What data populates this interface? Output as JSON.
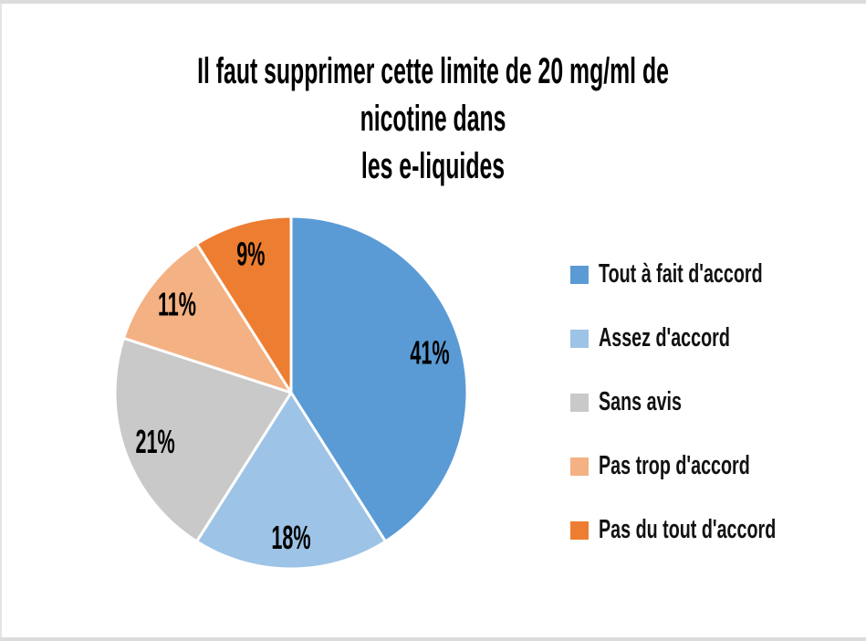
{
  "page": {
    "background": "#ffffff",
    "border_color": "#dcdcdc"
  },
  "chart_data": {
    "type": "pie",
    "title": "Il faut supprimer cette limite de 20 mg/ml de nicotine dans\nles e-liquides",
    "categories": [
      "Tout à fait d'accord",
      "Assez d'accord",
      "Sans avis",
      "Pas trop d'accord",
      "Pas du tout d'accord"
    ],
    "values": [
      41,
      18,
      21,
      11,
      9
    ],
    "value_labels": [
      "41%",
      "18%",
      "21%",
      "11%",
      "9%"
    ],
    "unit": "%",
    "colors": [
      "#5B9BD5",
      "#9DC3E6",
      "#C9C9C9",
      "#F4B183",
      "#ED7D31"
    ],
    "slice_border_color": "#FFFFFF",
    "start_angle_deg": 0,
    "direction": "clockwise",
    "legend_position": "right",
    "label_text_color": "#000000"
  }
}
